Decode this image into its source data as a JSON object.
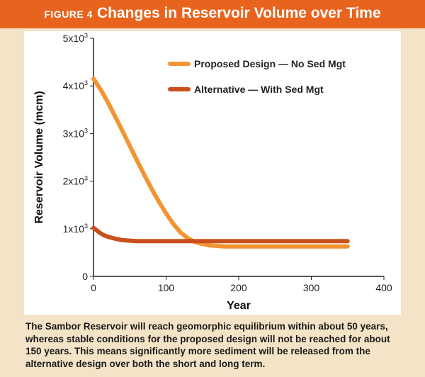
{
  "figure": {
    "label": "FIGURE 4",
    "title": "Changes in Reservoir Volume over Time"
  },
  "colors": {
    "header": "#e8641e",
    "background": "#f4e3c7",
    "plot_bg": "#ffffff",
    "proposed": "#f39433",
    "alternative": "#c9501c"
  },
  "caption": "The Sambor Reservoir will reach geomorphic equilibrium within about 50 years, whereas stable conditions for the proposed design will not be reached for about 150 years. This means significantly more sediment will be released from the alternative design over both the short and long term.",
  "chart_data": {
    "type": "line",
    "xlabel": "Year",
    "ylabel": "Reservoir Volume (mcm)",
    "xlim": [
      0,
      400
    ],
    "ylim": [
      0,
      5000
    ],
    "x_ticks": [
      0,
      100,
      200,
      300,
      400
    ],
    "y_ticks": [
      {
        "value": 0,
        "base": "0",
        "exp": ""
      },
      {
        "value": 1000,
        "base": "1x10",
        "exp": "3"
      },
      {
        "value": 2000,
        "base": "2x10",
        "exp": "3"
      },
      {
        "value": 3000,
        "base": "3x10",
        "exp": "3"
      },
      {
        "value": 4000,
        "base": "4x10",
        "exp": "3"
      },
      {
        "value": 5000,
        "base": "5x10",
        "exp": "3"
      }
    ],
    "grid": false,
    "legend_position": "top-right",
    "series": [
      {
        "name": "Proposed Design — No Sed Mgt",
        "color": "#f39433",
        "x": [
          0,
          10,
          20,
          30,
          40,
          50,
          60,
          70,
          80,
          90,
          100,
          110,
          120,
          130,
          140,
          150,
          160,
          170,
          180,
          200,
          250,
          300,
          350
        ],
        "y": [
          4150,
          3920,
          3650,
          3350,
          3050,
          2740,
          2430,
          2130,
          1840,
          1570,
          1320,
          1100,
          920,
          800,
          720,
          680,
          650,
          640,
          630,
          630,
          630,
          630,
          630
        ]
      },
      {
        "name": "Alternative — With Sed Mgt",
        "color": "#c9501c",
        "x": [
          0,
          5,
          10,
          15,
          20,
          30,
          40,
          50,
          60,
          80,
          100,
          150,
          200,
          250,
          300,
          350
        ],
        "y": [
          1020,
          960,
          900,
          860,
          830,
          790,
          760,
          750,
          740,
          740,
          740,
          740,
          740,
          740,
          740,
          740
        ]
      }
    ]
  }
}
